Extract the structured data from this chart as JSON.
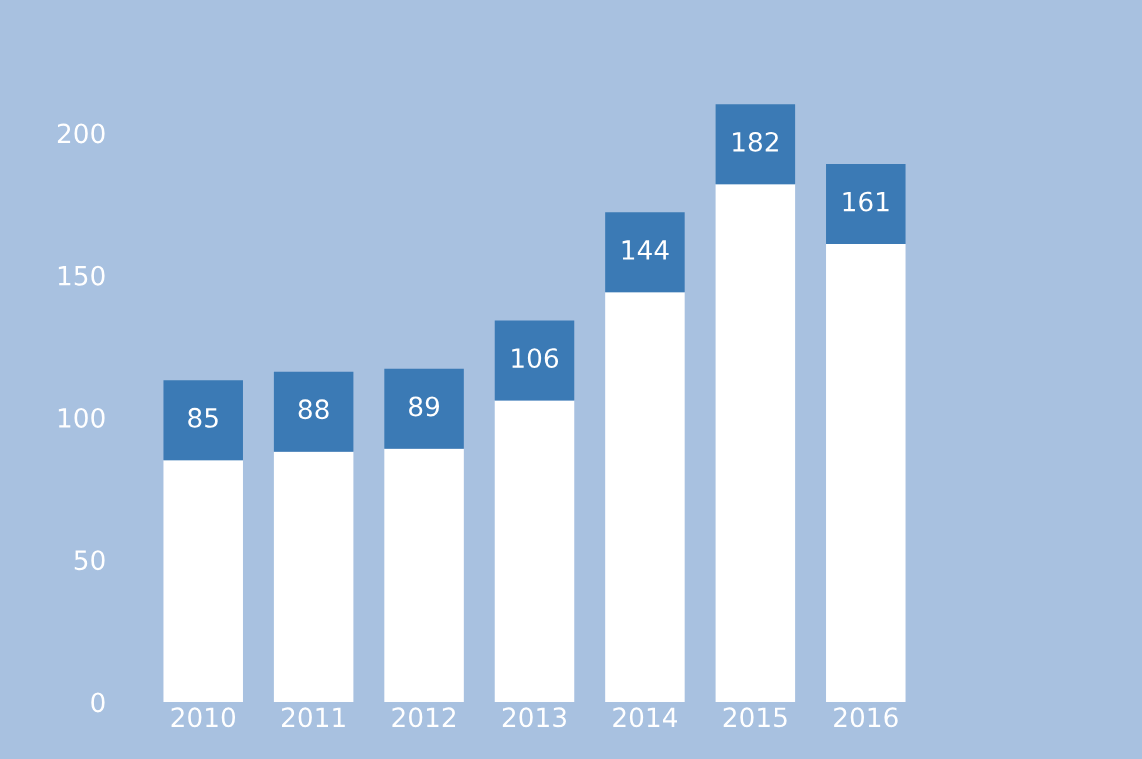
{
  "chart_data": {
    "type": "bar",
    "categories": [
      "2010",
      "2011",
      "2012",
      "2013",
      "2014",
      "2015",
      "2016"
    ],
    "series": [
      {
        "color": "#ffffff",
        "values": [
          85,
          88,
          89,
          106,
          144,
          182,
          161
        ],
        "value_labels": [
          "85",
          "88",
          "89",
          "106",
          "144",
          "182",
          "161"
        ]
      }
    ],
    "ylim": [
      0,
      200
    ],
    "yticks": [
      0,
      50,
      100,
      150,
      200
    ],
    "grid": false
  }
}
